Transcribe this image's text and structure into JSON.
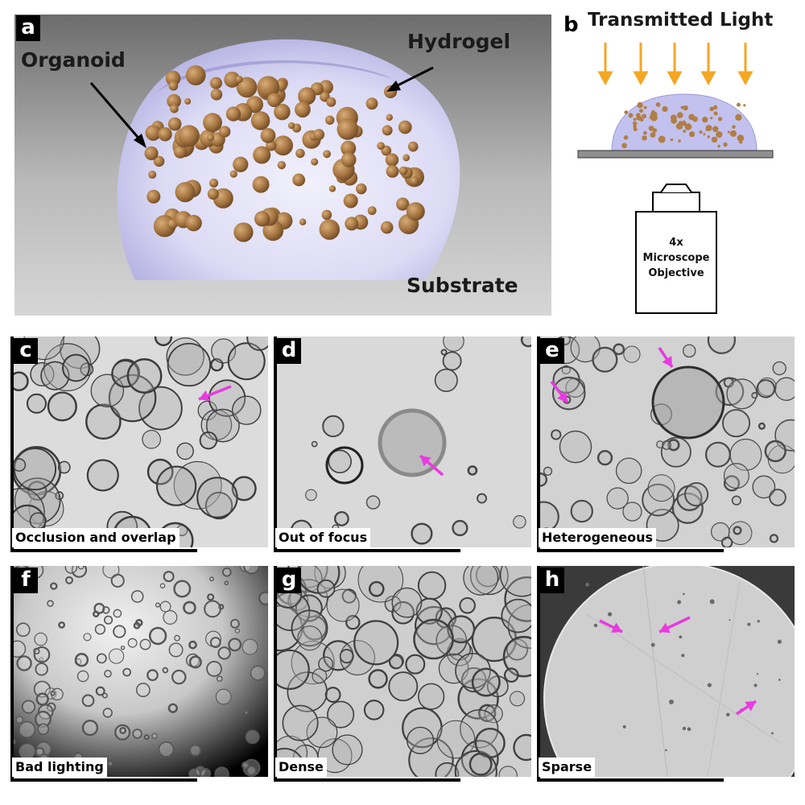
{
  "panel_a": {
    "letter": "a",
    "label_organoid": "Organoid",
    "label_hydrogel": "Hydrogel",
    "label_substrate": "Substrate"
  },
  "panel_b": {
    "letter": "b",
    "title": "Transmitted Light",
    "objective_line1": "4x",
    "objective_line2": "Microscope",
    "objective_line3": "Objective"
  },
  "tiles": [
    {
      "letter": "c",
      "caption": "Occlusion and overlap"
    },
    {
      "letter": "d",
      "caption": "Out of focus"
    },
    {
      "letter": "e",
      "caption": "Heterogeneous"
    },
    {
      "letter": "f",
      "caption": "Bad lighting"
    },
    {
      "letter": "g",
      "caption": "Dense"
    },
    {
      "letter": "h",
      "caption": "Sparse"
    }
  ],
  "colors": {
    "arrow_orange": "#f5a623",
    "marker_magenta": "#e83be0",
    "hydrogel": "#c9c8f0",
    "organoid": "#9a6e3c",
    "substrate": "#8a8a8a"
  }
}
